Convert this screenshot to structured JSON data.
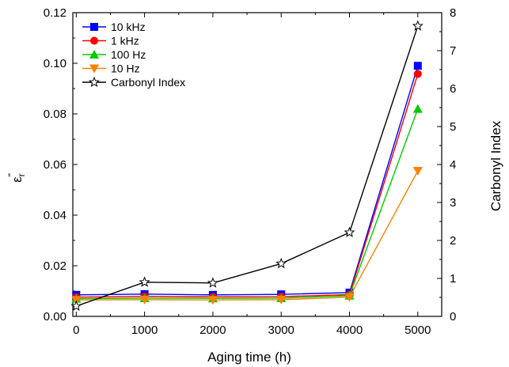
{
  "chart_data": {
    "type": "line",
    "xlabel": "Aging time (h)",
    "ylabel_main": "ε",
    "ylabel_sub": "r",
    "ylabel_sup": "\"",
    "y2label": "Carbonyl Index",
    "xlim": [
      -50,
      5350
    ],
    "ylim": [
      0,
      0.12
    ],
    "y2lim": [
      0,
      8
    ],
    "x_ticks": [
      0,
      1000,
      2000,
      3000,
      4000,
      5000
    ],
    "y_ticks": [
      "0.00",
      "0.02",
      "0.04",
      "0.06",
      "0.08",
      "0.10",
      "0.12"
    ],
    "y2_ticks": [
      "0",
      "1",
      "2",
      "3",
      "4",
      "5",
      "6",
      "7",
      "8"
    ],
    "legend_position": "top-left",
    "x": [
      0,
      1000,
      2000,
      3000,
      4000,
      5000
    ],
    "series": [
      {
        "name": "10 kHz",
        "axis": "left",
        "color": "#0000ff",
        "marker": "square",
        "values": [
          0.0085,
          0.0088,
          0.0085,
          0.0087,
          0.0094,
          0.099
        ]
      },
      {
        "name": "1 kHz",
        "axis": "left",
        "color": "#ff0000",
        "marker": "circle",
        "values": [
          0.0076,
          0.0079,
          0.0077,
          0.0078,
          0.0086,
          0.0958
        ]
      },
      {
        "name": "100 Hz",
        "axis": "left",
        "color": "#00cc00",
        "marker": "triangle-up",
        "values": [
          0.007,
          0.0072,
          0.0071,
          0.0072,
          0.0082,
          0.082
        ]
      },
      {
        "name": "10 Hz",
        "axis": "left",
        "color": "#ff8000",
        "marker": "triangle-down",
        "values": [
          0.0065,
          0.0066,
          0.0065,
          0.0066,
          0.0076,
          0.0575
        ]
      },
      {
        "name": "Carbonyl Index",
        "axis": "right",
        "color": "#000000",
        "marker": "star",
        "values": [
          0.27,
          0.9,
          0.88,
          1.39,
          2.21,
          7.65
        ]
      }
    ]
  }
}
